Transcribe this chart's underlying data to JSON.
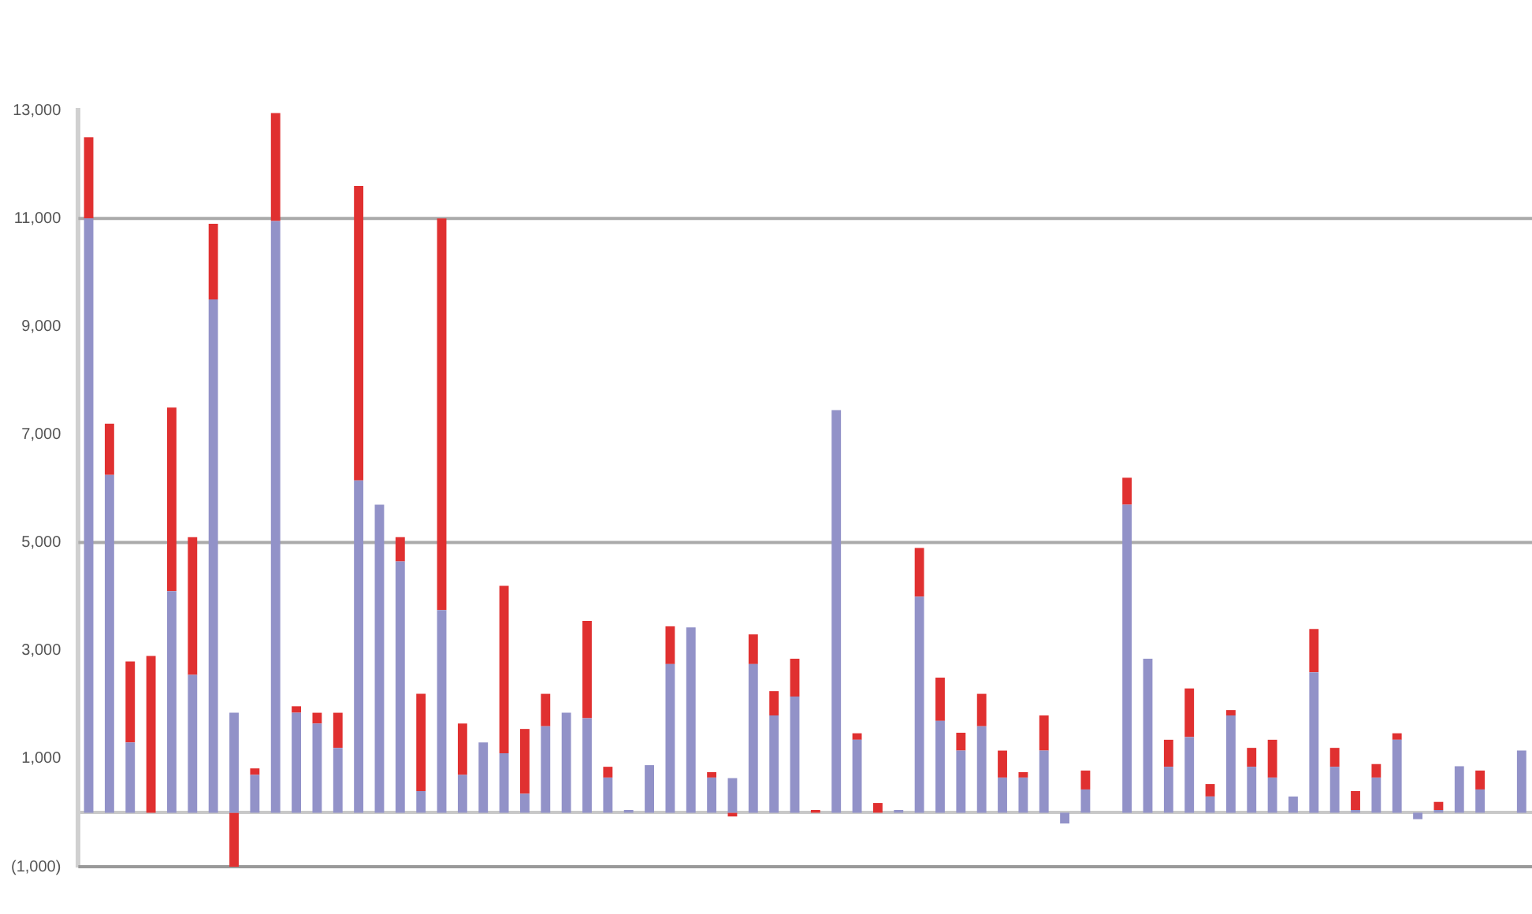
{
  "chart_data": {
    "type": "bar",
    "stacked": true,
    "categories": [
      null,
      null,
      null,
      null,
      null,
      null,
      null,
      null,
      null,
      null,
      null,
      null,
      null,
      null,
      null,
      null,
      null,
      null,
      null,
      null,
      null,
      null,
      null,
      null,
      null,
      null,
      null,
      null,
      null,
      null,
      null,
      null,
      null,
      null,
      null,
      null,
      null,
      null,
      null,
      null,
      null,
      null,
      null,
      null,
      null,
      null,
      null,
      null,
      null,
      null,
      null,
      null,
      null,
      null,
      null,
      null,
      null,
      null,
      null,
      null,
      null,
      null,
      null,
      null,
      null,
      null,
      null,
      null,
      null,
      null
    ],
    "series": [
      {
        "color": "#9292c8",
        "values": [
          11000,
          6250,
          1300,
          0,
          4100,
          2550,
          9500,
          1850,
          700,
          10950,
          1850,
          1650,
          1200,
          6150,
          5700,
          4650,
          400,
          3750,
          700,
          1300,
          1100,
          350,
          1600,
          1850,
          1750,
          650,
          50,
          880,
          2750,
          3430,
          650,
          640,
          2750,
          1800,
          2150,
          0,
          7450,
          1350,
          0,
          50,
          4000,
          1700,
          1150,
          1600,
          650,
          650,
          1150,
          -200,
          430,
          0,
          5700,
          2850,
          850,
          1400,
          300,
          1800,
          850,
          650,
          300,
          2600,
          850,
          50,
          650,
          1350,
          -120,
          50,
          860,
          430,
          0,
          1150
        ]
      },
      {
        "color": "#e03030",
        "values": [
          1500,
          950,
          1500,
          2900,
          3400,
          2550,
          1400,
          -1000,
          120,
          2000,
          120,
          200,
          650,
          5450,
          0,
          450,
          1800,
          7250,
          950,
          0,
          3100,
          1200,
          600,
          0,
          1800,
          200,
          0,
          0,
          700,
          0,
          100,
          -70,
          550,
          450,
          700,
          50,
          0,
          120,
          180,
          0,
          900,
          800,
          330,
          600,
          500,
          100,
          650,
          0,
          350,
          0,
          500,
          0,
          500,
          900,
          230,
          100,
          350,
          700,
          0,
          800,
          350,
          350,
          250,
          120,
          0,
          150,
          0,
          350,
          0,
          0
        ]
      }
    ],
    "ylim": [
      -1000,
      13000
    ],
    "yticks": [
      {
        "value": -1000,
        "label": "(1,000)"
      },
      {
        "value": 1000,
        "label": "1,000"
      },
      {
        "value": 3000,
        "label": "3,000"
      },
      {
        "value": 5000,
        "label": "5,000"
      },
      {
        "value": 7000,
        "label": "7,000"
      },
      {
        "value": 9000,
        "label": "9,000"
      },
      {
        "value": 11000,
        "label": "11,000"
      },
      {
        "value": 13000,
        "label": "13,000"
      }
    ],
    "ref_lines": [
      {
        "axis": "y",
        "value": -1000,
        "color": "#999999"
      },
      {
        "axis": "y",
        "value": 5000,
        "color": "#aaaaaa"
      },
      {
        "axis": "y",
        "value": 11000,
        "color": "#aaaaaa"
      }
    ]
  }
}
